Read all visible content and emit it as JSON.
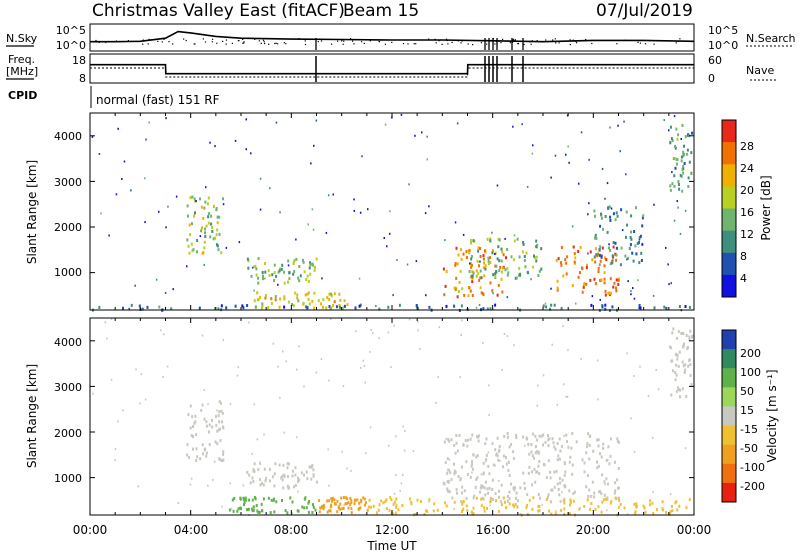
{
  "header": {
    "station": "Christmas Valley East (fitACF)",
    "beam": "Beam 15",
    "date": "07/Jul/2019"
  },
  "noise_panel": {
    "left_label": "N.Sky",
    "right_label": "N.Search",
    "left_ticks": [
      "10^5",
      "10^0"
    ],
    "right_ticks": [
      "10^5",
      "10^0"
    ]
  },
  "freq_panel": {
    "left_label_1": "Freq.",
    "left_label_2": "[MHz]",
    "right_label": "Nave",
    "left_ticks": [
      "18",
      "8"
    ],
    "right_ticks": [
      "60",
      "0"
    ]
  },
  "cpid": {
    "label": "CPID",
    "program": "normal (fast) 151 RF"
  },
  "power_panel": {
    "ylabel": "Slant Range [km]",
    "yticks": [
      "4000",
      "3000",
      "2000",
      "1000"
    ],
    "colorbar_label": "Power [dB]",
    "colorbar_ticks": [
      "28",
      "24",
      "20",
      "16",
      "12",
      "8",
      "4"
    ],
    "colorbar_colors": [
      "#1010e0",
      "#2050b0",
      "#3f8f7f",
      "#6fb46f",
      "#b8d020",
      "#f0b000",
      "#f07000",
      "#e82818"
    ]
  },
  "velocity_panel": {
    "ylabel": "Slant Range [km]",
    "yticks": [
      "4000",
      "3000",
      "2000",
      "1000"
    ],
    "colorbar_label": "Velocity [m s⁻¹]",
    "colorbar_ticks": [
      "200",
      "100",
      "50",
      "15",
      "-15",
      "-50",
      "-100",
      "-200"
    ],
    "colorbar_colors": [
      "#2040b0",
      "#2f8a5f",
      "#5fb24a",
      "#9ad85a",
      "#c8c8c0",
      "#f0c030",
      "#f0a020",
      "#f07010",
      "#e82010"
    ]
  },
  "xaxis": {
    "label": "Time UT",
    "ticks": [
      "00:00",
      "04:00",
      "08:00",
      "12:00",
      "16:00",
      "20:00",
      "00:00"
    ]
  },
  "chart_data": [
    {
      "type": "line",
      "title": "Christmas Valley East (fitACF)",
      "series": [
        {
          "name": "N.Sky",
          "x": [
            0,
            1,
            2,
            3,
            3.5,
            4,
            5,
            6,
            8,
            10,
            12,
            14,
            16,
            18,
            20,
            22,
            24
          ],
          "values": [
            1.2,
            1.2,
            1.3,
            2.0,
            3.5,
            3.2,
            2.4,
            2.0,
            1.8,
            1.7,
            1.6,
            1.6,
            1.4,
            1.2,
            1.5,
            1.5,
            1.3
          ]
        }
      ]
    },
    {
      "type": "line",
      "series": [
        {
          "name": "Freq.",
          "x": [
            0,
            3,
            3.01,
            15,
            15.01,
            24
          ],
          "values": [
            16.5,
            16.5,
            11.5,
            11.5,
            16.5,
            16.5
          ]
        },
        {
          "name": "Nave",
          "x": [
            0,
            3,
            3.01,
            15,
            15.01,
            24
          ],
          "values": [
            40,
            40,
            10,
            10,
            40,
            40
          ]
        }
      ]
    },
    {
      "type": "heatmap",
      "xlabel": "Time UT",
      "ylabel": "Slant Range [km]",
      "xlim": [
        0,
        24
      ],
      "ylim": [
        180,
        4500
      ],
      "colorbar": "Power [dB]",
      "patches": [
        {
          "t0": 3.8,
          "t1": 5.3,
          "r0": 1400,
          "r1": 2700,
          "level": 16
        },
        {
          "t0": 6.2,
          "t1": 9.0,
          "r0": 800,
          "r1": 1350,
          "level": 14
        },
        {
          "t0": 6.5,
          "t1": 10.5,
          "r0": 250,
          "r1": 600,
          "level": 20
        },
        {
          "t0": 14.0,
          "t1": 16.5,
          "r0": 500,
          "r1": 1600,
          "level": 24
        },
        {
          "t0": 15.0,
          "t1": 18.0,
          "r0": 900,
          "r1": 1800,
          "level": 14
        },
        {
          "t0": 18.5,
          "t1": 21.0,
          "r0": 500,
          "r1": 1600,
          "level": 26
        },
        {
          "t0": 20.0,
          "t1": 22.0,
          "r0": 1200,
          "r1": 2500,
          "level": 10
        },
        {
          "t0": 23.0,
          "t1": 24.0,
          "r0": 2800,
          "r1": 4300,
          "level": 12
        },
        {
          "t0": 0.0,
          "t1": 24.0,
          "r0": 180,
          "r1": 320,
          "level": 8
        }
      ]
    },
    {
      "type": "heatmap",
      "xlabel": "Time UT",
      "ylabel": "Slant Range [km]",
      "xlim": [
        0,
        24
      ],
      "ylim": [
        180,
        4500
      ],
      "colorbar": "Velocity [m s⁻¹]",
      "patches": [
        {
          "t0": 3.8,
          "t1": 5.3,
          "r0": 1400,
          "r1": 2700,
          "level": 0
        },
        {
          "t0": 6.2,
          "t1": 9.0,
          "r0": 800,
          "r1": 1350,
          "level": 0
        },
        {
          "t0": 5.5,
          "t1": 9.0,
          "r0": 250,
          "r1": 600,
          "level": 60
        },
        {
          "t0": 9.0,
          "t1": 11.0,
          "r0": 250,
          "r1": 600,
          "level": -70
        },
        {
          "t0": 14.0,
          "t1": 21.0,
          "r0": 500,
          "r1": 2000,
          "level": 0
        },
        {
          "t0": 11.0,
          "t1": 24.0,
          "r0": 200,
          "r1": 600,
          "level": -40
        },
        {
          "t0": 23.0,
          "t1": 24.0,
          "r0": 2800,
          "r1": 4300,
          "level": 0
        }
      ]
    }
  ]
}
